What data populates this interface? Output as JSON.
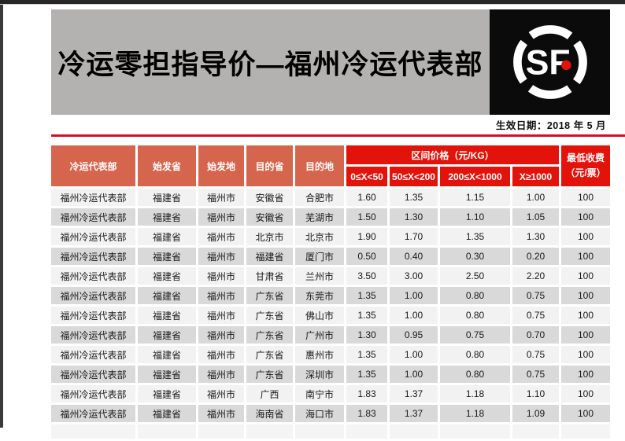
{
  "page": {
    "title": "冷运零担指导价—福州冷运代表部",
    "effective_date": "生效日期：2018 年 5 月",
    "logo": {
      "name": "sf-express-logo",
      "letters": "SF"
    }
  },
  "colors": {
    "header_salmon": "#d6654e",
    "header_red": "#e2130b",
    "rule_red": "#d01125",
    "banner_gray": "#b3b2b1",
    "row_odd": "#f2f2f2",
    "row_even": "#d9d9d9",
    "logo_black": "#0b0b0b",
    "logo_dot_red": "#e2130b"
  },
  "table": {
    "columns": [
      "冷运代表部",
      "始发省",
      "始发地",
      "目的省",
      "目的地"
    ],
    "price_group_header": "区间价格（元/KG）",
    "price_columns": [
      "0≤X<50",
      "50≤X<200",
      "200≤X<1000",
      "X≥1000"
    ],
    "min_charge_header_line1": "最低收费",
    "min_charge_header_line2": "（元/票）",
    "rows": [
      [
        "福州冷运代表部",
        "福建省",
        "福州市",
        "安徽省",
        "合肥市",
        "1.60",
        "1.35",
        "1.15",
        "1.00",
        "100"
      ],
      [
        "福州冷运代表部",
        "福建省",
        "福州市",
        "安徽省",
        "芜湖市",
        "1.50",
        "1.30",
        "1.10",
        "1.05",
        "100"
      ],
      [
        "福州冷运代表部",
        "福建省",
        "福州市",
        "北京市",
        "北京市",
        "1.90",
        "1.70",
        "1.35",
        "1.30",
        "100"
      ],
      [
        "福州冷运代表部",
        "福建省",
        "福州市",
        "福建省",
        "厦门市",
        "0.50",
        "0.40",
        "0.30",
        "0.20",
        "100"
      ],
      [
        "福州冷运代表部",
        "福建省",
        "福州市",
        "甘肃省",
        "兰州市",
        "3.50",
        "3.00",
        "2.50",
        "2.20",
        "100"
      ],
      [
        "福州冷运代表部",
        "福建省",
        "福州市",
        "广东省",
        "东莞市",
        "1.35",
        "1.00",
        "0.80",
        "0.75",
        "100"
      ],
      [
        "福州冷运代表部",
        "福建省",
        "福州市",
        "广东省",
        "佛山市",
        "1.35",
        "1.00",
        "0.80",
        "0.75",
        "100"
      ],
      [
        "福州冷运代表部",
        "福建省",
        "福州市",
        "广东省",
        "广州市",
        "1.30",
        "0.95",
        "0.75",
        "0.70",
        "100"
      ],
      [
        "福州冷运代表部",
        "福建省",
        "福州市",
        "广东省",
        "惠州市",
        "1.35",
        "1.00",
        "0.80",
        "0.75",
        "100"
      ],
      [
        "福州冷运代表部",
        "福建省",
        "福州市",
        "广东省",
        "深圳市",
        "1.35",
        "1.00",
        "0.80",
        "0.75",
        "100"
      ],
      [
        "福州冷运代表部",
        "福建省",
        "福州市",
        "广西",
        "南宁市",
        "1.83",
        "1.37",
        "1.18",
        "1.10",
        "100"
      ],
      [
        "福州冷运代表部",
        "福建省",
        "福州市",
        "海南省",
        "海口市",
        "1.83",
        "1.37",
        "1.18",
        "1.09",
        "100"
      ]
    ]
  }
}
